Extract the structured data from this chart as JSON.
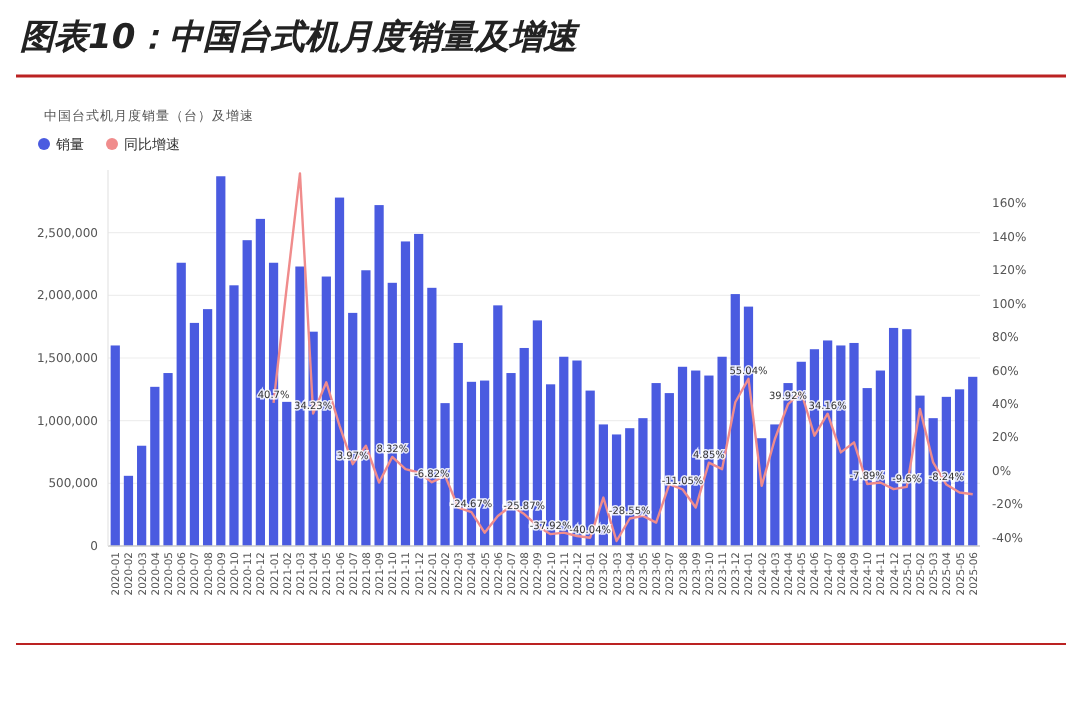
{
  "chart_data": {
    "type": "bar",
    "title": "图表10：中国台式机月度销量及增速",
    "subtitle": "中国台式机月度销量（台）及增速",
    "categories": [
      "2020-01",
      "2020-02",
      "2020-03",
      "2020-04",
      "2020-05",
      "2020-06",
      "2020-07",
      "2020-08",
      "2020-09",
      "2020-10",
      "2020-11",
      "2020-12",
      "2021-01",
      "2021-02",
      "2021-03",
      "2021-04",
      "2021-05",
      "2021-06",
      "2021-07",
      "2021-08",
      "2021-09",
      "2021-10",
      "2021-11",
      "2021-12",
      "2022-01",
      "2022-02",
      "2022-03",
      "2022-04",
      "2022-05",
      "2022-06",
      "2022-07",
      "2022-08",
      "2022-09",
      "2022-10",
      "2022-11",
      "2022-12",
      "2023-01",
      "2023-02",
      "2023-03",
      "2023-04",
      "2023-05",
      "2023-06",
      "2023-07",
      "2023-08",
      "2023-09",
      "2023-10",
      "2023-11",
      "2023-12",
      "2024-01",
      "2024-02",
      "2024-03",
      "2024-04",
      "2024-05",
      "2024-06",
      "2024-07",
      "2024-08",
      "2024-09",
      "2024-10",
      "2024-11",
      "2024-12",
      "2025-01",
      "2025-02",
      "2025-03",
      "2025-04",
      "2025-05",
      "2025-06"
    ],
    "series": [
      {
        "name": "销量",
        "color": "#4a5be0",
        "values": [
          1600000,
          560000,
          800000,
          1270000,
          1380000,
          2260000,
          1780000,
          1890000,
          2950000,
          2080000,
          2440000,
          2610000,
          2260000,
          1150000,
          2230000,
          1710000,
          2150000,
          2780000,
          1860000,
          2200000,
          2720000,
          2100000,
          2430000,
          2490000,
          2060000,
          1140000,
          1620000,
          1310000,
          1320000,
          1920000,
          1380000,
          1580000,
          1800000,
          1290000,
          1510000,
          1480000,
          1240000,
          970000,
          890000,
          940000,
          1020000,
          1300000,
          1220000,
          1430000,
          1400000,
          1360000,
          1510000,
          2010000,
          1910000,
          860000,
          970000,
          1300000,
          1470000,
          1570000,
          1640000,
          1600000,
          1620000,
          1260000,
          1400000,
          1740000,
          1730000,
          1200000,
          1020000,
          1190000,
          1250000,
          1350000
        ]
      },
      {
        "name": "同比增速",
        "type": "line",
        "axis": "y2",
        "color": "#f08c8c",
        "values": [
          null,
          null,
          null,
          null,
          null,
          null,
          null,
          null,
          null,
          null,
          null,
          null,
          40.7,
          110,
          178,
          34.23,
          53,
          27,
          3.97,
          15,
          -7,
          8.32,
          1,
          -1,
          -6.82,
          -3,
          -22,
          -24.67,
          -37,
          -27,
          -21,
          -25.87,
          -33,
          -37.92,
          -37,
          -39,
          -40.04,
          -16,
          -42,
          -28.55,
          -27,
          -31,
          -8,
          -11.05,
          -22,
          4.85,
          1,
          41,
          55.04,
          -9,
          19,
          39.92,
          47,
          21,
          34.16,
          11,
          17,
          -7.89,
          -7,
          -11,
          -9.6,
          37,
          5,
          -8.24,
          -13,
          -14
        ],
        "value_labels": [
          null,
          null,
          null,
          null,
          null,
          null,
          null,
          null,
          null,
          null,
          null,
          null,
          "40.7%",
          null,
          null,
          "34.23%",
          null,
          null,
          "3.97%",
          null,
          null,
          "8.32%",
          null,
          null,
          "-6.82%",
          null,
          null,
          "-24.67%",
          null,
          null,
          null,
          "-25.87%",
          null,
          "-37.92%",
          null,
          null,
          "-40.04%",
          null,
          null,
          "-28.55%",
          null,
          null,
          null,
          "-11.05%",
          null,
          "4.85%",
          null,
          null,
          "55.04%",
          null,
          null,
          "39.92%",
          null,
          null,
          "34.16%",
          null,
          null,
          "-7.89%",
          null,
          null,
          "-9.6%",
          null,
          null,
          "-8.24%",
          null,
          null
        ]
      }
    ],
    "ylim": [
      0,
      3000000
    ],
    "yticks": [
      0,
      {
        "value": 500000,
        "label": "500,000"
      },
      {
        "value": 1000000,
        "label": "1,000,000"
      },
      {
        "value": 1500000,
        "label": "1,500,000"
      },
      {
        "value": 2000000,
        "label": "2,000,000"
      },
      {
        "value": 2500000,
        "label": "2,500,000"
      }
    ],
    "y2lim": [
      -45,
      180
    ],
    "y2ticks": [
      {
        "value": -40,
        "label": "-40%"
      },
      {
        "value": -20,
        "label": "-20%"
      },
      {
        "value": 0,
        "label": "0%"
      },
      {
        "value": 20,
        "label": "20%"
      },
      {
        "value": 40,
        "label": "40%"
      },
      {
        "value": 60,
        "label": "60%"
      },
      {
        "value": 80,
        "label": "80%"
      },
      {
        "value": 100,
        "label": "100%"
      },
      {
        "value": 120,
        "label": "120%"
      },
      {
        "value": 140,
        "label": "140%"
      },
      {
        "value": 160,
        "label": "160%"
      }
    ],
    "grid": "y",
    "legend": "top left",
    "marker": "none",
    "line_style": "solid"
  }
}
